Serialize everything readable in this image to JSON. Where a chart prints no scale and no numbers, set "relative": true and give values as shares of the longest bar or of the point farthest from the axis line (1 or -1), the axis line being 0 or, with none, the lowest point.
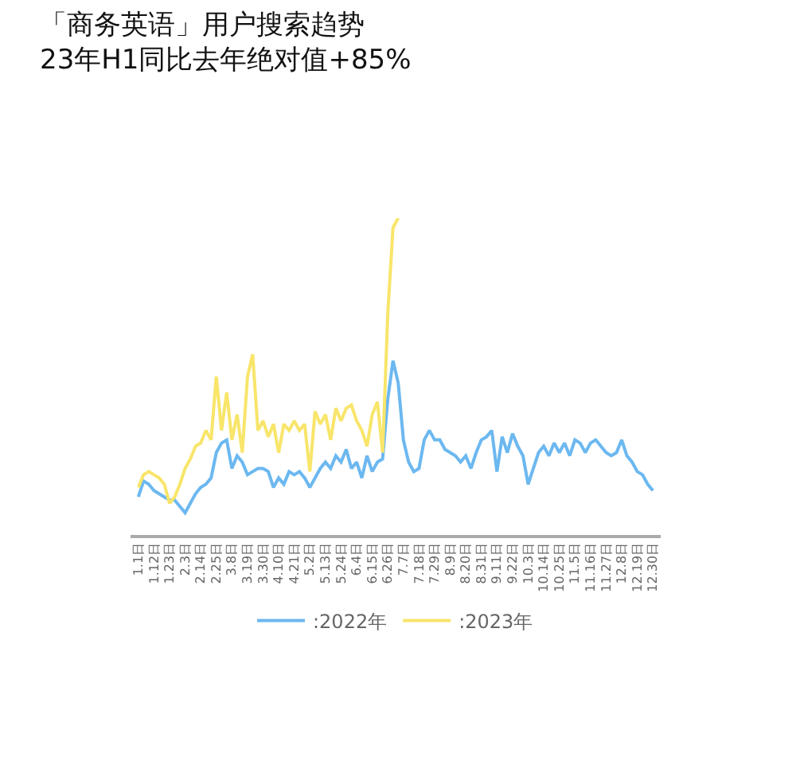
{
  "chart_data": {
    "type": "line",
    "title": "「商务英语」用户搜索趋势",
    "subtitle": "23年H1同比去年绝对值+85%",
    "relative": true,
    "legend": "bottom",
    "marker": "none",
    "line_style": "solid",
    "categories": [
      "1.1日",
      null,
      null,
      "1.12日",
      null,
      null,
      "1.23日",
      null,
      null,
      "2.3日",
      null,
      null,
      "2.14日",
      null,
      null,
      "2.25日",
      null,
      null,
      "3.8日",
      null,
      null,
      "3.19日",
      null,
      null,
      "3.30日",
      null,
      null,
      "4.10日",
      null,
      null,
      "4.21日",
      null,
      null,
      "5.2日",
      null,
      null,
      "5.13日",
      null,
      null,
      "5.24日",
      null,
      null,
      "6.4日",
      null,
      null,
      "6.15日",
      null,
      null,
      "6.26日",
      null,
      null,
      "7.7日",
      null,
      null,
      "7.18日",
      null,
      null,
      "7.29日",
      null,
      null,
      "8.9日",
      null,
      null,
      "8.20日",
      null,
      null,
      "8.31日",
      null,
      null,
      "9.11日",
      null,
      null,
      "9.22日",
      null,
      null,
      "10.3日",
      null,
      null,
      "10.14日",
      null,
      null,
      "10.25日",
      null,
      null,
      "11.5日",
      null,
      null,
      "11.16日",
      null,
      null,
      "11.27日",
      null,
      null,
      "12.8日",
      null,
      null,
      "12.19日",
      null,
      null,
      "12.30日"
    ],
    "series": [
      {
        "name": ":2022年",
        "color": "#6cb8f0",
        "values": [
          0.12,
          0.17,
          0.16,
          0.14,
          0.13,
          0.12,
          0.11,
          0.11,
          0.09,
          0.07,
          0.1,
          0.13,
          0.15,
          0.16,
          0.18,
          0.26,
          0.29,
          0.3,
          0.21,
          0.25,
          0.23,
          0.19,
          0.2,
          0.21,
          0.21,
          0.2,
          0.15,
          0.18,
          0.16,
          0.2,
          0.19,
          0.2,
          0.18,
          0.15,
          0.18,
          0.21,
          0.23,
          0.21,
          0.25,
          0.23,
          0.27,
          0.21,
          0.23,
          0.18,
          0.25,
          0.2,
          0.23,
          0.24,
          0.43,
          0.55,
          0.48,
          0.3,
          0.23,
          0.2,
          0.21,
          0.3,
          0.33,
          0.3,
          0.3,
          0.27,
          0.26,
          0.25,
          0.23,
          0.25,
          0.21,
          0.26,
          0.3,
          0.31,
          0.33,
          0.2,
          0.31,
          0.26,
          0.32,
          0.28,
          0.25,
          0.16,
          0.21,
          0.26,
          0.28,
          0.25,
          0.29,
          0.26,
          0.29,
          0.25,
          0.3,
          0.29,
          0.26,
          0.29,
          0.3,
          0.28,
          0.26,
          0.25,
          0.26,
          0.3,
          0.25,
          0.23,
          0.2,
          0.19,
          0.16,
          0.14
        ]
      },
      {
        "name": ":2023年",
        "color": "#f8e56a",
        "values": [
          0.15,
          0.19,
          0.2,
          0.19,
          0.18,
          0.16,
          0.1,
          0.12,
          0.16,
          0.21,
          0.24,
          0.28,
          0.29,
          0.33,
          0.3,
          0.5,
          0.33,
          0.45,
          0.3,
          0.38,
          0.26,
          0.5,
          0.57,
          0.33,
          0.36,
          0.31,
          0.35,
          0.26,
          0.35,
          0.33,
          0.36,
          0.33,
          0.35,
          0.2,
          0.39,
          0.35,
          0.38,
          0.3,
          0.4,
          0.36,
          0.4,
          0.41,
          0.36,
          0.33,
          0.28,
          0.38,
          0.42,
          0.26,
          0.7,
          0.97,
          1.0,
          null,
          null,
          null,
          null,
          null,
          null,
          null,
          null,
          null,
          null,
          null,
          null,
          null,
          null,
          null,
          null,
          null,
          null,
          null,
          null,
          null,
          null,
          null,
          null,
          null,
          null,
          null,
          null,
          null,
          null,
          null,
          null,
          null,
          null,
          null,
          null,
          null,
          null,
          null,
          null,
          null,
          null,
          null,
          null,
          null,
          null,
          null,
          null,
          null
        ]
      }
    ]
  }
}
